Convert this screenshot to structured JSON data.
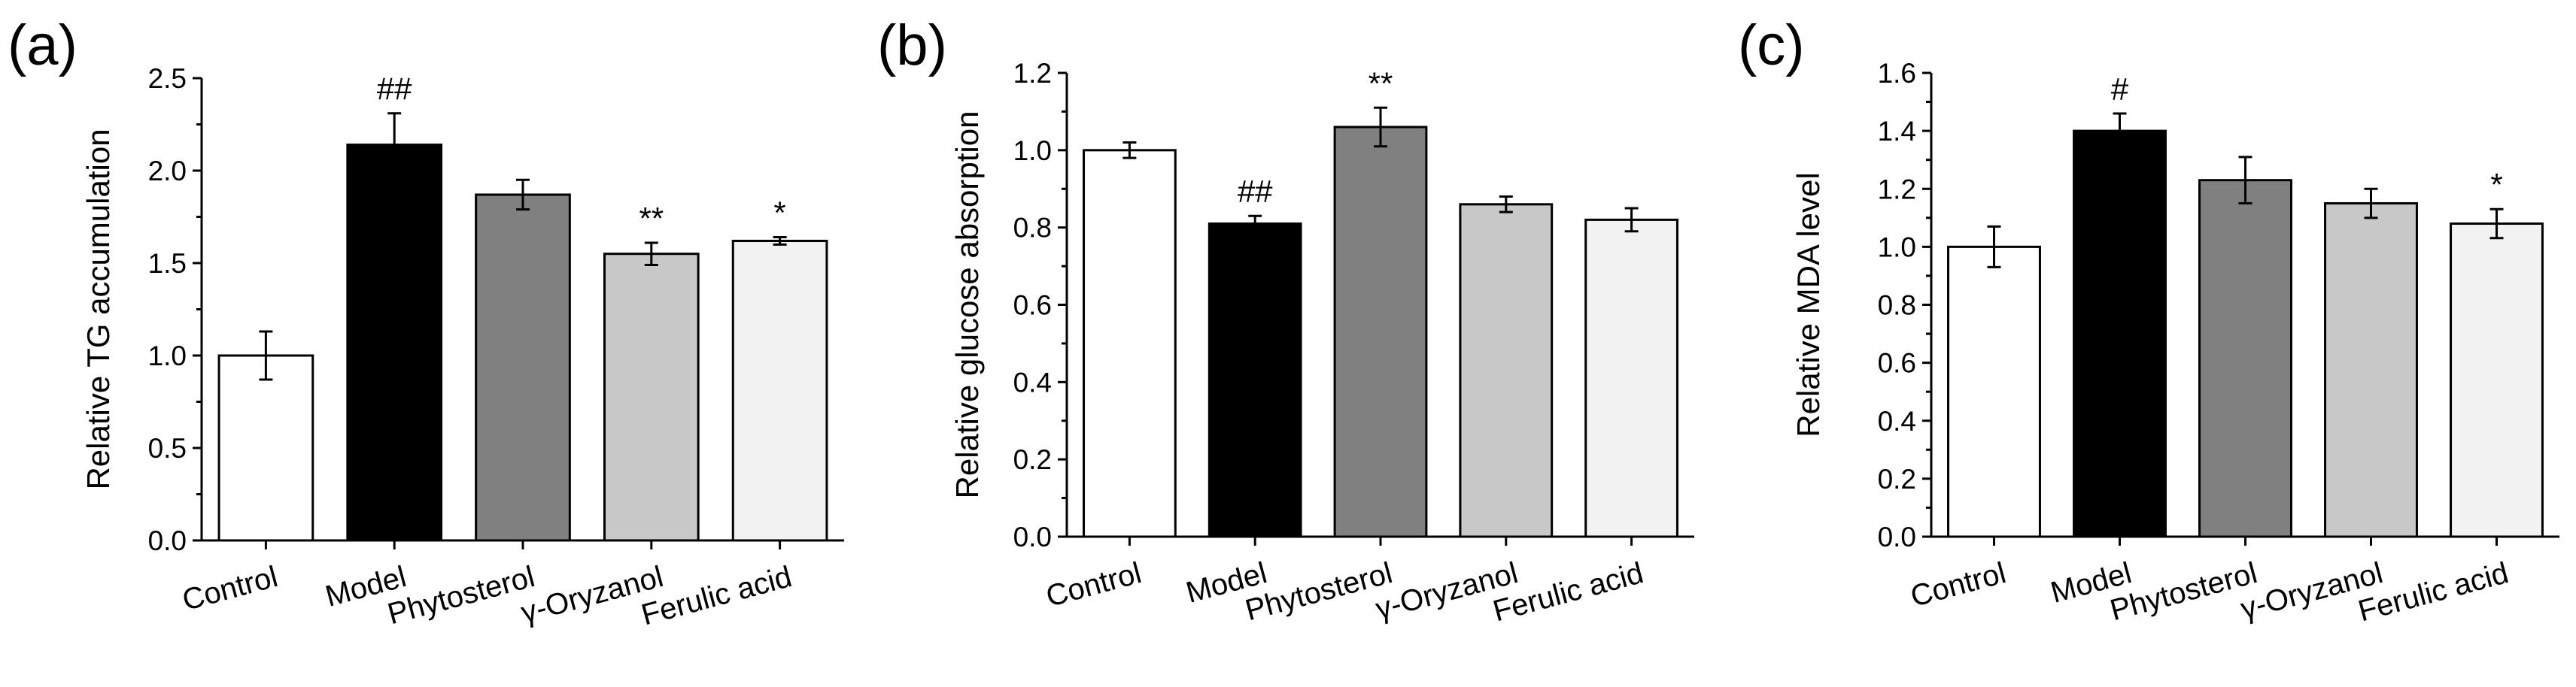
{
  "chart_data": [
    {
      "type": "bar",
      "panel_label": "(a)",
      "ylabel": "Relative TG accumulation",
      "xlabel": "",
      "categories": [
        "Control",
        "Model",
        "Phytosterol",
        "γ-Oryzanol",
        "Ferulic acid"
      ],
      "values": [
        1.0,
        2.14,
        1.87,
        1.55,
        1.62
      ],
      "errors": [
        0.13,
        0.17,
        0.08,
        0.06,
        0.02
      ],
      "annotations": [
        "",
        "##",
        "",
        "**",
        "*"
      ],
      "bar_colors": [
        "#ffffff",
        "#000000",
        "#808080",
        "#c8c8c8",
        "#f2f2f2"
      ],
      "ylim": [
        0,
        2.5
      ],
      "yticks": [
        0.0,
        0.5,
        1.0,
        1.5,
        2.0,
        2.5
      ],
      "ytick_labels": [
        "0.0",
        "0.5",
        "1.0",
        "1.5",
        "2.0",
        "2.5"
      ]
    },
    {
      "type": "bar",
      "panel_label": "(b)",
      "ylabel": "Relative glucose absorption",
      "xlabel": "",
      "categories": [
        "Control",
        "Model",
        "Phytosterol",
        "γ-Oryzanol",
        "Ferulic acid"
      ],
      "values": [
        1.0,
        0.81,
        1.06,
        0.86,
        0.82
      ],
      "errors": [
        0.02,
        0.02,
        0.05,
        0.02,
        0.03
      ],
      "annotations": [
        "",
        "##",
        "**",
        "",
        ""
      ],
      "bar_colors": [
        "#ffffff",
        "#000000",
        "#808080",
        "#c8c8c8",
        "#f2f2f2"
      ],
      "ylim": [
        0,
        1.2
      ],
      "yticks": [
        0.0,
        0.2,
        0.4,
        0.6,
        0.8,
        1.0,
        1.2
      ],
      "ytick_labels": [
        "0.0",
        "0.2",
        "0.4",
        "0.6",
        "0.8",
        "1.0",
        "1.2"
      ]
    },
    {
      "type": "bar",
      "panel_label": "(c)",
      "ylabel": "Relative MDA level",
      "xlabel": "",
      "categories": [
        "Control",
        "Model",
        "Phytosterol",
        "γ-Oryzanol",
        "Ferulic acid"
      ],
      "values": [
        1.0,
        1.4,
        1.23,
        1.15,
        1.08
      ],
      "errors": [
        0.07,
        0.06,
        0.08,
        0.05,
        0.05
      ],
      "annotations": [
        "",
        "#",
        "",
        "",
        "*"
      ],
      "bar_colors": [
        "#ffffff",
        "#000000",
        "#808080",
        "#c8c8c8",
        "#f2f2f2"
      ],
      "ylim": [
        0,
        1.6
      ],
      "yticks": [
        0.0,
        0.2,
        0.4,
        0.6,
        0.8,
        1.0,
        1.2,
        1.4,
        1.6
      ],
      "ytick_labels": [
        "0.0",
        "0.2",
        "0.4",
        "0.6",
        "0.8",
        "1.0",
        "1.2",
        "1.4",
        "1.6"
      ]
    }
  ]
}
